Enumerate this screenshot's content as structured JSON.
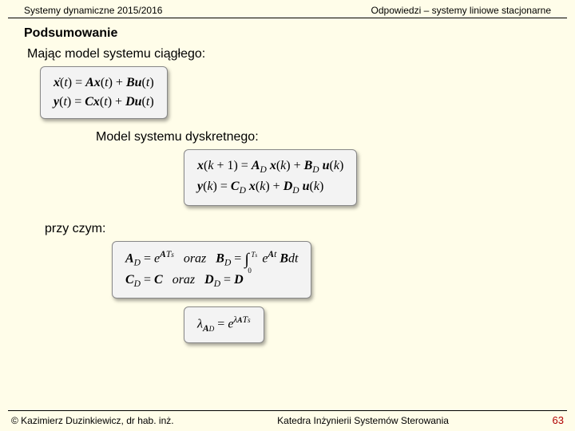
{
  "header": {
    "left": "Systemy dynamiczne 2015/2016",
    "right": "Odpowiedzi – systemy liniowe stacjonarne"
  },
  "titles": {
    "main": "Podsumowanie",
    "sub1": "Mając model systemu ciągłego:",
    "sub2": "Model systemu dyskretnego:",
    "przy": "przy czym:"
  },
  "footer": {
    "left": "© Kazimierz Duzinkiewicz, dr hab. inż.",
    "center": "Katedra Inżynierii Systemów Sterowania",
    "page": "63"
  },
  "colors": {
    "bg": "#fffde9",
    "page_num": "#b00000"
  }
}
